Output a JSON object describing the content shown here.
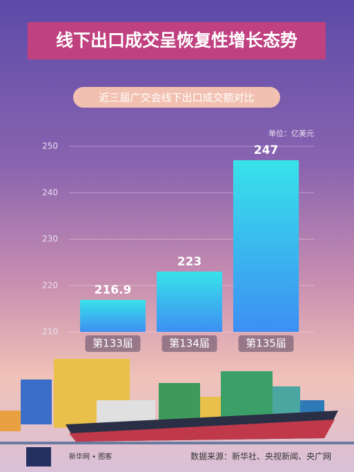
{
  "chart_data": {
    "type": "bar",
    "title": "线下出口成交呈恢复性增长态势",
    "subtitle": "近三届广交会线下出口成交额对比",
    "unit": "单位：亿美元",
    "categories": [
      "第133届",
      "第134届",
      "第135届"
    ],
    "values": [
      216.9,
      223,
      247
    ],
    "ylim": [
      210,
      250
    ],
    "yticks": [
      210,
      220,
      230,
      240,
      250
    ],
    "grid": true,
    "color": "#3fa0f0"
  },
  "footer": {
    "brand": "新华网 • 图客",
    "source": "数据来源：新华社、央视新闻、央广网"
  }
}
